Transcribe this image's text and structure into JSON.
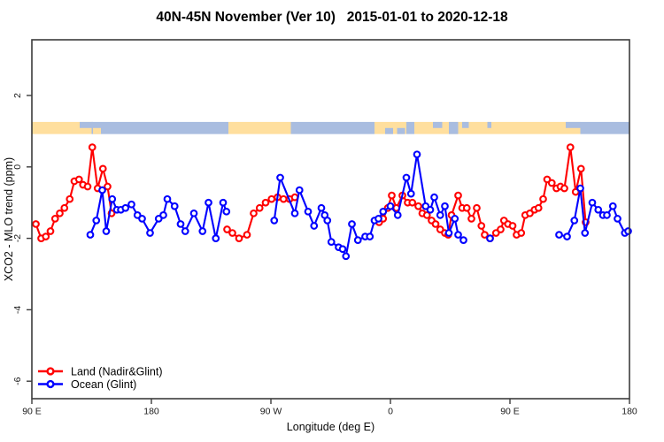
{
  "title": "40N-45N November (Ver 10)   2015-01-01 to 2020-12-18",
  "colors": {
    "land_series": "#ff0000",
    "ocean_series": "#0000ff",
    "map_land": "#ffdf9e",
    "map_ocean": "#a9bde0",
    "axis": "#3c3c3c",
    "background": "#ffffff"
  },
  "chart_data": {
    "type": "line",
    "title": "40N-45N November (Ver 10)   2015-01-01 to 2020-12-18",
    "xlabel": "Longitude (deg E)",
    "ylabel": "XCO2 - MLO trend (ppm)",
    "xlim": [
      90,
      540
    ],
    "ylim": [
      -6.49,
      3.56
    ],
    "grid": false,
    "x_ticks": {
      "values": [
        90,
        180,
        270,
        360,
        450,
        540
      ],
      "labels": [
        "90 E",
        "180",
        "90 W",
        "0",
        "90 E",
        "180"
      ]
    },
    "y_ticks": {
      "values": [
        2,
        0,
        -2,
        -4,
        -6
      ],
      "labels": [
        "2",
        "0",
        "-2",
        "-4",
        "-6"
      ]
    },
    "legend": {
      "position": "bottom-left",
      "entries": [
        {
          "label": "Land (Nadir&Glint)",
          "color": "#ff0000"
        },
        {
          "label": "Ocean (Glint)",
          "color": "#0000ff"
        }
      ]
    },
    "map_strip": {
      "description": "land/ocean world strip for latitude band 40N-45N, drawn near y=1",
      "y_range": [
        0.92,
        1.26
      ],
      "land_color": "#ffdf9e",
      "ocean_color": "#a9bde0",
      "segments": [
        {
          "from": 90,
          "to": 135,
          "type": "land"
        },
        {
          "from": 135,
          "to": 238,
          "type": "ocean"
        },
        {
          "from": 238,
          "to": 285,
          "type": "land"
        },
        {
          "from": 285,
          "to": 348,
          "type": "ocean"
        },
        {
          "from": 348,
          "to": 372,
          "type": "land"
        },
        {
          "from": 372,
          "to": 378,
          "type": "ocean"
        },
        {
          "from": 378,
          "to": 503,
          "type": "land"
        },
        {
          "from": 503,
          "to": 540,
          "type": "ocean"
        }
      ],
      "patches": [
        {
          "from": 126,
          "to": 136,
          "row": "top",
          "type": "ocean"
        },
        {
          "from": 136,
          "to": 142,
          "row": "bottom",
          "type": "land"
        },
        {
          "from": 356,
          "to": 362,
          "row": "bottom",
          "type": "ocean"
        },
        {
          "from": 365,
          "to": 371,
          "row": "bottom",
          "type": "ocean"
        },
        {
          "from": 392,
          "to": 399,
          "row": "top",
          "type": "ocean"
        },
        {
          "from": 404,
          "to": 411,
          "row": "full",
          "type": "ocean"
        },
        {
          "from": 414,
          "to": 419,
          "row": "top",
          "type": "ocean"
        },
        {
          "from": 433,
          "to": 436,
          "row": "top",
          "type": "ocean"
        },
        {
          "from": 492,
          "to": 503,
          "row": "top",
          "type": "ocean"
        }
      ]
    },
    "series": [
      {
        "name": "Land (Nadir&Glint)",
        "color": "#ff0000",
        "marker": "open-circle",
        "segments": [
          [
            [
              93,
              -1.6
            ],
            [
              97,
              -2.0
            ],
            [
              100.5,
              -1.95
            ],
            [
              104,
              -1.8
            ],
            [
              107.5,
              -1.45
            ],
            [
              111,
              -1.3
            ],
            [
              114.5,
              -1.15
            ],
            [
              118.5,
              -0.9
            ],
            [
              122,
              -0.4
            ],
            [
              125.5,
              -0.35
            ],
            [
              128.5,
              -0.5
            ],
            [
              132,
              -0.55
            ],
            [
              135.5,
              0.55
            ],
            [
              139.5,
              -0.6
            ],
            [
              143.5,
              -0.05
            ],
            [
              147,
              -0.55
            ],
            [
              150,
              -1.3
            ]
          ],
          [
            [
              237,
              -1.75
            ],
            [
              241,
              -1.85
            ],
            [
              246,
              -2.0
            ],
            [
              252,
              -1.9
            ],
            [
              257,
              -1.3
            ],
            [
              261.5,
              -1.15
            ],
            [
              266,
              -1.0
            ],
            [
              270.5,
              -0.9
            ],
            [
              275,
              -0.85
            ],
            [
              279.5,
              -0.9
            ],
            [
              284,
              -0.9
            ],
            [
              288,
              -0.85
            ]
          ],
          [
            [
              351.5,
              -1.55
            ],
            [
              354.5,
              -1.45
            ],
            [
              358,
              -1.15
            ],
            [
              361,
              -0.8
            ],
            [
              364.5,
              -1.15
            ],
            [
              369,
              -0.8
            ],
            [
              373,
              -1.0
            ],
            [
              376.5,
              -1.0
            ],
            [
              381,
              -1.1
            ],
            [
              384,
              -1.3
            ],
            [
              387.5,
              -1.35
            ],
            [
              391,
              -1.5
            ],
            [
              394,
              -1.6
            ],
            [
              397.5,
              -1.75
            ],
            [
              401,
              -1.85
            ],
            [
              403.5,
              -1.9
            ],
            [
              406,
              -1.35
            ],
            [
              411,
              -0.8
            ],
            [
              414,
              -1.15
            ],
            [
              417.5,
              -1.15
            ],
            [
              421,
              -1.45
            ],
            [
              425,
              -1.15
            ],
            [
              428.5,
              -1.65
            ],
            [
              431,
              -1.9
            ],
            [
              435,
              -2.0
            ],
            [
              439.5,
              -1.85
            ],
            [
              443,
              -1.75
            ],
            [
              445.5,
              -1.5
            ],
            [
              448.5,
              -1.6
            ],
            [
              452,
              -1.65
            ],
            [
              455,
              -1.9
            ],
            [
              458.5,
              -1.85
            ],
            [
              461.5,
              -1.35
            ],
            [
              465,
              -1.3
            ],
            [
              468.5,
              -1.2
            ],
            [
              471.5,
              -1.15
            ],
            [
              475,
              -0.9
            ],
            [
              478,
              -0.35
            ],
            [
              481.5,
              -0.45
            ],
            [
              485,
              -0.6
            ],
            [
              488,
              -0.55
            ],
            [
              491,
              -0.6
            ],
            [
              495.5,
              0.55
            ],
            [
              499.5,
              -0.7
            ],
            [
              503.5,
              -0.05
            ],
            [
              507,
              -1.55
            ]
          ]
        ]
      },
      {
        "name": "Ocean (Glint)",
        "color": "#0000ff",
        "marker": "open-circle",
        "segments": [
          [
            [
              134,
              -1.9
            ],
            [
              138.5,
              -1.5
            ],
            [
              143,
              -0.65
            ],
            [
              146,
              -1.8
            ],
            [
              150.5,
              -0.9
            ],
            [
              154,
              -1.2
            ],
            [
              157,
              -1.2
            ],
            [
              160.5,
              -1.15
            ],
            [
              165,
              -1.05
            ],
            [
              169.5,
              -1.35
            ],
            [
              173,
              -1.45
            ],
            [
              179,
              -1.85
            ],
            [
              185.5,
              -1.45
            ],
            [
              189,
              -1.35
            ],
            [
              192,
              -0.9
            ],
            [
              197.5,
              -1.1
            ],
            [
              202,
              -1.6
            ],
            [
              205.5,
              -1.8
            ],
            [
              212,
              -1.3
            ],
            [
              218.5,
              -1.8
            ],
            [
              223,
              -1.0
            ],
            [
              228.5,
              -2.0
            ],
            [
              234,
              -1.0
            ],
            [
              236.5,
              -1.25
            ]
          ],
          [
            [
              272.5,
              -1.5
            ],
            [
              277,
              -0.3
            ],
            [
              288,
              -1.3
            ],
            [
              291.5,
              -0.65
            ],
            [
              298,
              -1.25
            ],
            [
              302.5,
              -1.65
            ],
            [
              308,
              -1.15
            ],
            [
              310.5,
              -1.35
            ],
            [
              312.5,
              -1.5
            ],
            [
              315.5,
              -2.1
            ],
            [
              321,
              -2.25
            ],
            [
              324,
              -2.3
            ],
            [
              326.5,
              -2.5
            ],
            [
              331,
              -1.6
            ],
            [
              335.5,
              -2.05
            ],
            [
              341,
              -1.95
            ],
            [
              344.5,
              -1.95
            ],
            [
              348,
              -1.5
            ],
            [
              351,
              -1.45
            ],
            [
              354.5,
              -1.25
            ],
            [
              360,
              -1.1
            ],
            [
              365.5,
              -1.35
            ],
            [
              372,
              -0.3
            ],
            [
              375.5,
              -0.75
            ],
            [
              380,
              0.35
            ],
            [
              386.5,
              -1.1
            ],
            [
              390,
              -1.2
            ],
            [
              393,
              -0.85
            ],
            [
              397.5,
              -1.35
            ],
            [
              401,
              -1.1
            ],
            [
              404,
              -1.85
            ],
            [
              408.5,
              -1.45
            ],
            [
              411,
              -1.9
            ],
            [
              415,
              -2.05
            ]
          ],
          [
            [
              435,
              -2.0
            ]
          ],
          [
            [
              487,
              -1.9
            ],
            [
              493,
              -1.95
            ],
            [
              498.5,
              -1.5
            ],
            [
              503,
              -0.6
            ],
            [
              506.5,
              -1.85
            ],
            [
              512,
              -1.0
            ],
            [
              516.5,
              -1.2
            ],
            [
              520,
              -1.35
            ],
            [
              523,
              -1.35
            ],
            [
              527.5,
              -1.1
            ],
            [
              531,
              -1.45
            ],
            [
              536.5,
              -1.85
            ],
            [
              539,
              -1.8
            ]
          ]
        ]
      }
    ]
  }
}
